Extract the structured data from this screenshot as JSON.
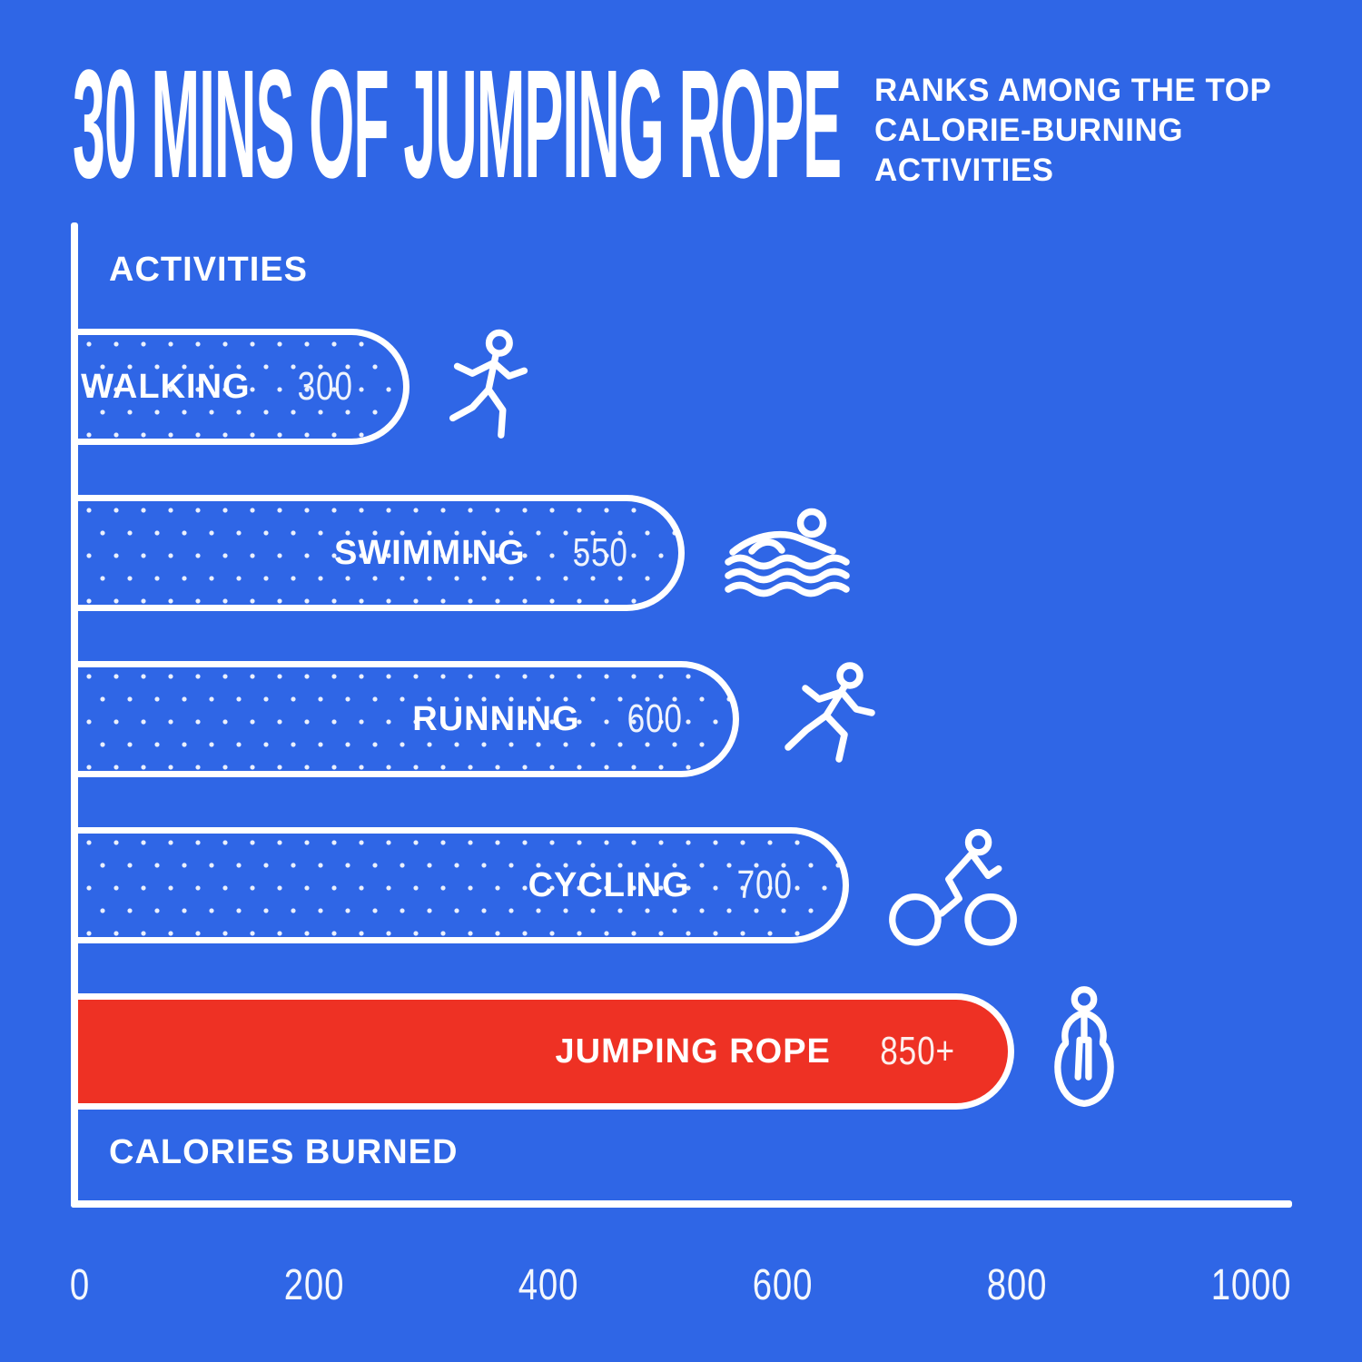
{
  "header": {
    "title": "30 MINS OF JUMPING ROPE",
    "subtitle": "RANKS AMONG THE TOP CALORIE-BURNING ACTIVITIES"
  },
  "chart_data": {
    "type": "bar",
    "orientation": "horizontal",
    "title": "30 MINS OF JUMPING ROPE RANKS AMONG THE TOP CALORIE-BURNING ACTIVITIES",
    "y_axis_label": "ACTIVITIES",
    "x_axis_label": "CALORIES BURNED",
    "xlim": [
      0,
      1000
    ],
    "x_ticks": [
      0,
      200,
      400,
      600,
      800,
      1000
    ],
    "categories": [
      "WALKING",
      "SWIMMING",
      "RUNNING",
      "CYCLING",
      "JUMPING ROPE"
    ],
    "values": [
      300,
      550,
      600,
      700,
      850
    ],
    "rows": [
      {
        "label": "WALKING",
        "value": 300,
        "value_label": "300",
        "icon": "walking-person-icon",
        "highlight": false
      },
      {
        "label": "SWIMMING",
        "value": 550,
        "value_label": "550",
        "icon": "swimmer-icon",
        "highlight": false
      },
      {
        "label": "RUNNING",
        "value": 600,
        "value_label": "600",
        "icon": "runner-icon",
        "highlight": false
      },
      {
        "label": "CYCLING",
        "value": 700,
        "value_label": "700",
        "icon": "cyclist-icon",
        "highlight": false
      },
      {
        "label": "JUMPING ROPE",
        "value": 850,
        "value_label": "850+",
        "icon": "jump-rope-person-icon",
        "highlight": true
      }
    ],
    "bar_style": "dotted-outline pills, highlighted row solid red",
    "grid": false,
    "legend": false,
    "colors": {
      "background": "#2f66e6",
      "bar_outline": "#ffffff",
      "bar_dots": "#ffffff",
      "highlight_bar_fill": "#ee3124",
      "text": "#ffffff"
    }
  }
}
